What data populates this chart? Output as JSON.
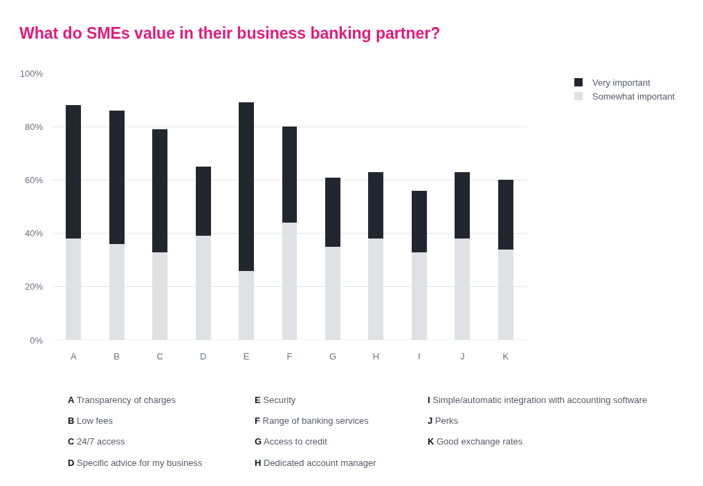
{
  "chart_data": {
    "type": "bar",
    "title": "What do SMEs value in their business banking partner?",
    "categories": [
      "A",
      "B",
      "C",
      "D",
      "E",
      "F",
      "G",
      "H",
      "I",
      "J",
      "K"
    ],
    "series": [
      {
        "name": "Somewhat important",
        "color": "#dfe1e5",
        "values": [
          38,
          36,
          33,
          39,
          26,
          44,
          35,
          38,
          33,
          38,
          34
        ]
      },
      {
        "name": "Very important",
        "color": "#22262e",
        "values": [
          50,
          50,
          46,
          26,
          63,
          36,
          26,
          25,
          23,
          25,
          26
        ]
      }
    ],
    "stacked": true,
    "ylim": [
      0,
      100
    ],
    "yticks": [
      {
        "value": 0,
        "label": "0%"
      },
      {
        "value": 20,
        "label": "20%"
      },
      {
        "value": 40,
        "label": "40%"
      },
      {
        "value": 60,
        "label": "60%"
      },
      {
        "value": 80,
        "label": "80%"
      },
      {
        "value": 100,
        "label": "100%"
      }
    ],
    "grid": "y",
    "legend": "top right",
    "annotations": [
      "A Transparency of charges",
      "B Low fees",
      "C 24/7 access",
      "D Specific advice for my business",
      "E Security",
      "F Range of banking services",
      "G Access to credit",
      "H Dedicated account manager",
      "I Simple/automatic integration with accounting software",
      "J Perks",
      "K Good exchange rates"
    ]
  }
}
